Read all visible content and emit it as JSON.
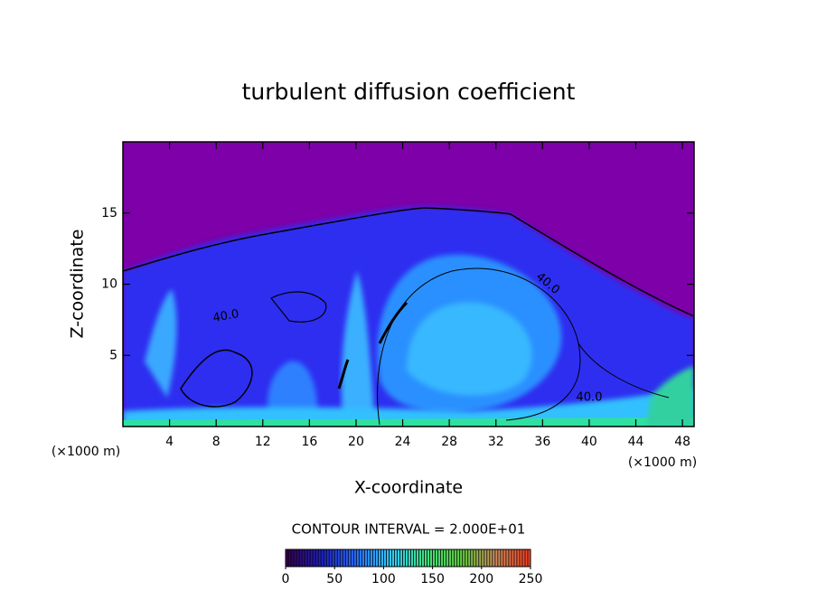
{
  "chart_data": {
    "type": "contour",
    "title": "turbulent diffusion coefficient",
    "x_label": "X-coordinate",
    "y_label": "Z-coordinate",
    "x_unit": "(×1000 m)",
    "y_unit": "(×1000 m)",
    "xlim": [
      0,
      49
    ],
    "ylim": [
      0,
      20
    ],
    "xticks": [
      4,
      8,
      12,
      16,
      20,
      24,
      28,
      32,
      36,
      40,
      44,
      48
    ],
    "yticks": [
      5,
      10,
      15
    ],
    "contour_interval_label": "CONTOUR INTERVAL = 2.000E+01",
    "contour_labels": [
      {
        "value": 40,
        "label": "40.0"
      },
      {
        "value": 40,
        "label": "40.0"
      },
      {
        "value": 40,
        "label": "40.0"
      }
    ],
    "colorbar": {
      "lim": [
        0,
        250
      ],
      "ticks": [
        0,
        50,
        100,
        150,
        200,
        250
      ],
      "colors": [
        "#3a0050",
        "#2020c0",
        "#2a70ff",
        "#30c8ff",
        "#40e080",
        "#60d040",
        "#d09060",
        "#ff4020"
      ]
    }
  }
}
